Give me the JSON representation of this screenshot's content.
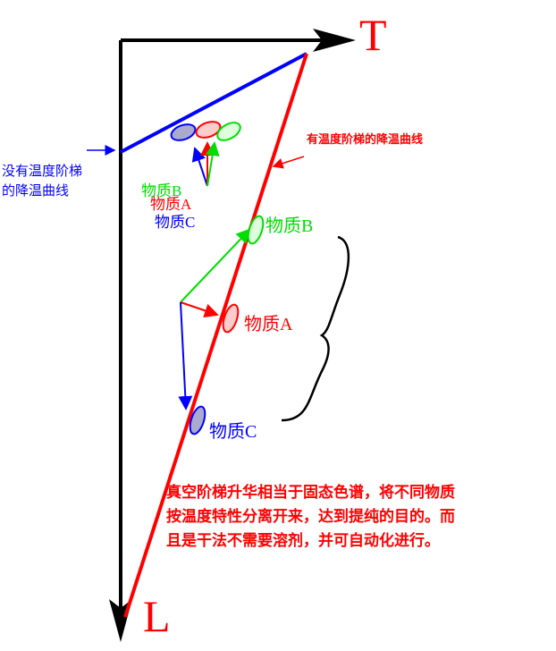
{
  "axes": {
    "t_label": "T",
    "l_label": "L"
  },
  "curves": {
    "without_step": [
      "没有温度阶梯",
      "的降温曲线"
    ],
    "with_step": "有温度阶梯的降温曲线"
  },
  "small_labels": [
    "物质B",
    "物质A",
    "物质C"
  ],
  "large_labels": [
    "物质B",
    "物质A",
    "物质C"
  ],
  "note": [
    "真空阶梯升华相当于固态色谱，将不同物质",
    "按温度特性分离开来，达到提纯的目的。而",
    "且是干法不需要溶剂，并可自动化进行。"
  ]
}
